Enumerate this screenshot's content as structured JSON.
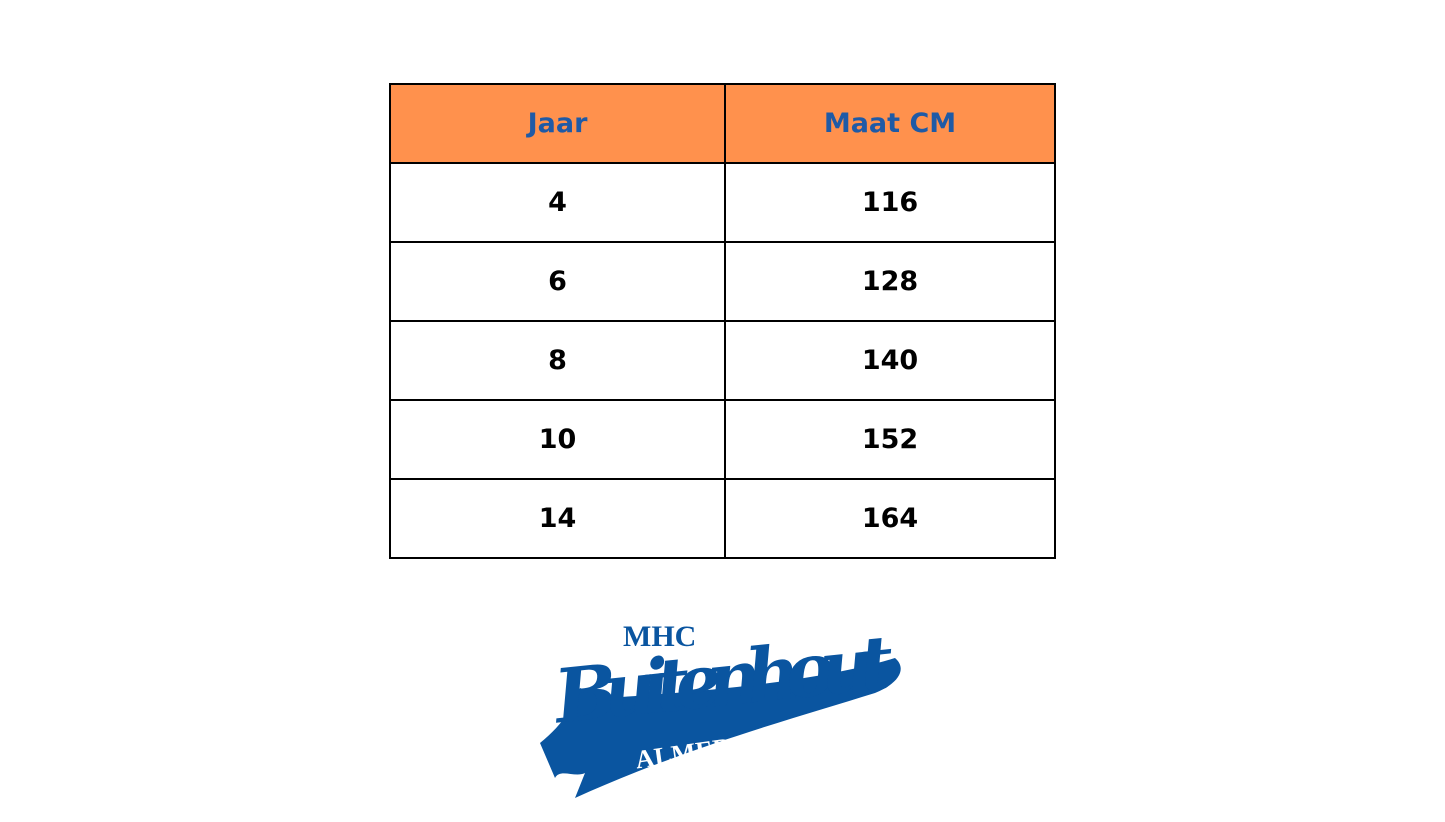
{
  "table": {
    "headers": [
      "Jaar",
      "Maat CM"
    ],
    "rows": [
      [
        "4",
        "116"
      ],
      [
        "6",
        "128"
      ],
      [
        "8",
        "140"
      ],
      [
        "10",
        "152"
      ],
      [
        "14",
        "164"
      ]
    ]
  },
  "logo": {
    "top_text": "MHC",
    "main_text": "Buitenhout",
    "bottom_text": "ALMERE",
    "color": "#0A55A0"
  },
  "colors": {
    "header_bg": "#FF914D",
    "header_text": "#1F5AA6"
  }
}
